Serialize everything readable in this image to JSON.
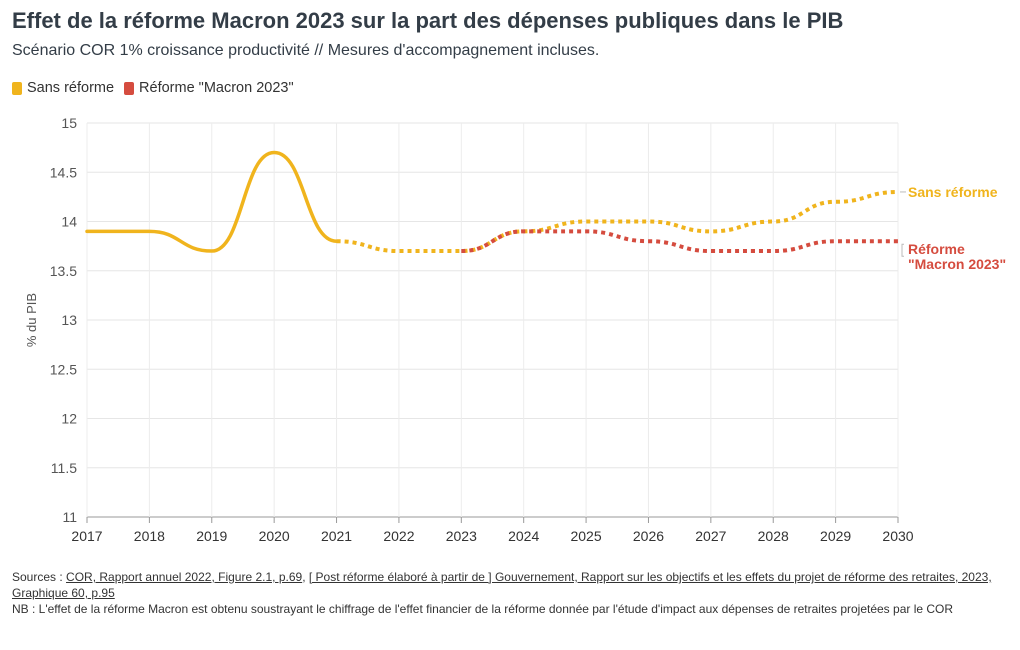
{
  "header": {
    "title": "Effet de la réforme Macron 2023 sur la part des dépenses publiques dans le PIB",
    "subtitle": "Scénario COR 1% croissance productivité // Mesures d'accompagnement incluses."
  },
  "colors": {
    "sans_reforme": "#f0b41d",
    "reforme": "#d54c3f"
  },
  "chart_data": {
    "type": "line",
    "ylabel": "% du PIB",
    "ylim": [
      11,
      15
    ],
    "xlim": [
      2017,
      2030
    ],
    "yticks": [
      "11",
      "11.5",
      "12",
      "12.5",
      "13",
      "13.5",
      "14",
      "14.5",
      "15"
    ],
    "xticks": [
      "2017",
      "2018",
      "2019",
      "2020",
      "2021",
      "2022",
      "2023",
      "2024",
      "2025",
      "2026",
      "2027",
      "2028",
      "2029",
      "2030"
    ],
    "grid": true,
    "legend_placement": "top-left",
    "series": [
      {
        "name": "Sans réforme",
        "label": "Sans réforme",
        "solid": {
          "x": [
            2017,
            2018,
            2019,
            2020,
            2021
          ],
          "y": [
            13.9,
            13.9,
            13.7,
            14.7,
            13.8
          ]
        },
        "dotted": {
          "x": [
            2021,
            2022,
            2023,
            2024,
            2025,
            2026,
            2027,
            2028,
            2029,
            2030
          ],
          "y": [
            13.8,
            13.7,
            13.7,
            13.9,
            14.0,
            14.0,
            13.9,
            14.0,
            14.2,
            14.3
          ]
        }
      },
      {
        "name": "Réforme \"Macron 2023\"",
        "label_lines": [
          "Réforme",
          "\"Macron 2023\""
        ],
        "dotted": {
          "x": [
            2023,
            2024,
            2025,
            2026,
            2027,
            2028,
            2029,
            2030
          ],
          "y": [
            13.7,
            13.9,
            13.9,
            13.8,
            13.7,
            13.7,
            13.8,
            13.8
          ]
        }
      }
    ]
  },
  "footer": {
    "sources_prefix": "Sources : ",
    "source_1": "COR, Rapport annuel 2022, Figure 2.1, p.69",
    "source_sep": ", ",
    "source_2": "[ Post réforme élaboré à partir de ] Gouvernement, Rapport sur les objectifs et les effets du projet de réforme des retraites, 2023, Graphique 60, p.95",
    "nb": "NB : L'effet de la réforme Macron est obtenu soustrayant le chiffrage de l'effet financier de la réforme donnée par l'étude d'impact aux dépenses de retraites projetées par le COR"
  }
}
